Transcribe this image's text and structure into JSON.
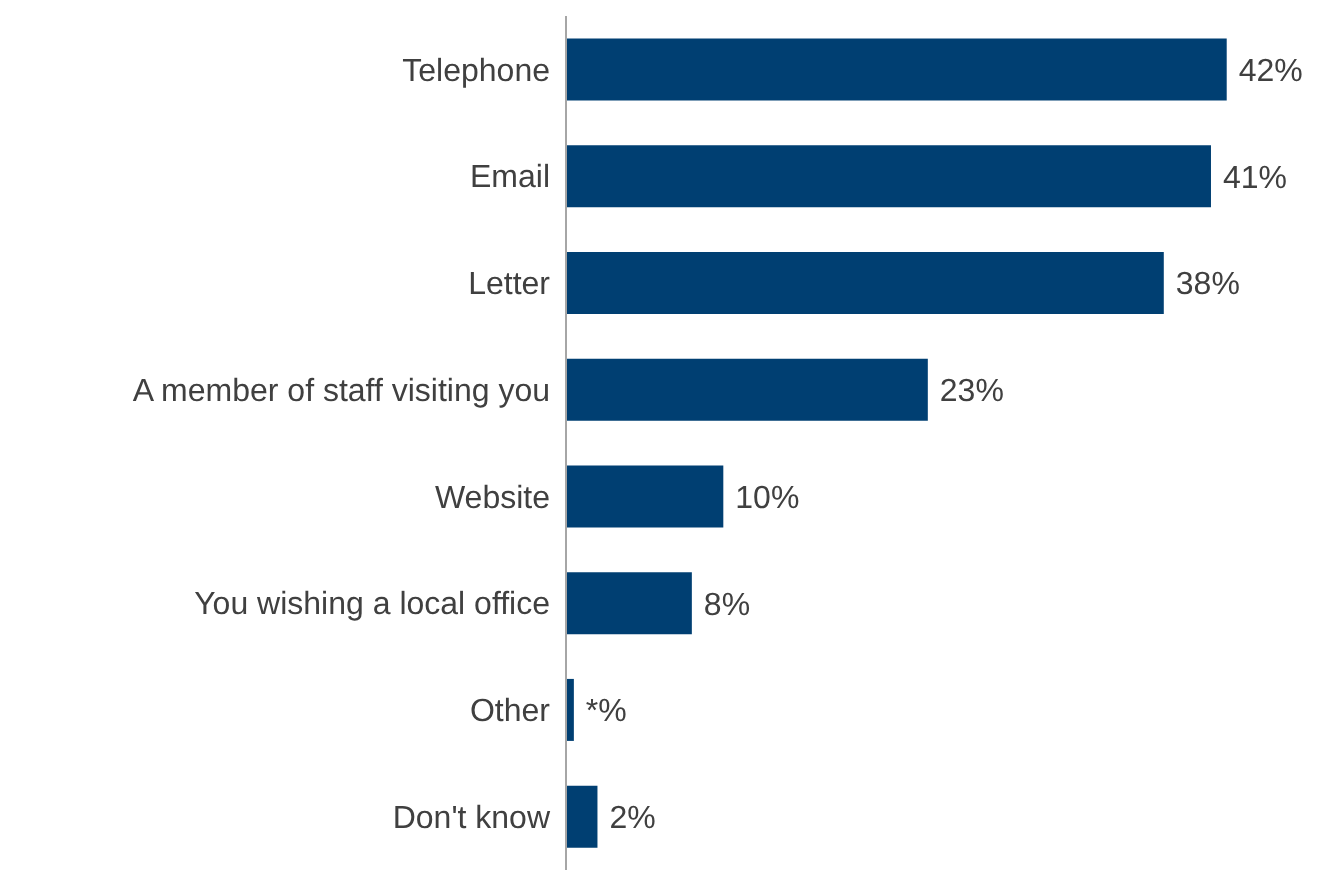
{
  "chart_data": {
    "type": "bar",
    "orientation": "horizontal",
    "categories": [
      "Telephone",
      "Email",
      "Letter",
      "A member of staff visiting you",
      "Website",
      "You wishing a local office",
      "Other",
      "Don't know"
    ],
    "values": [
      42,
      41,
      38,
      23,
      10,
      8,
      0.5,
      2
    ],
    "value_labels": [
      "42%",
      "41%",
      "38%",
      "23%",
      "10%",
      "8%",
      "*%",
      "2%"
    ],
    "color": "#003f72"
  }
}
